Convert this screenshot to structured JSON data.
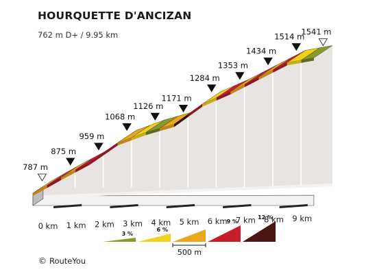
{
  "header": {
    "title": "HOURQUETTE D'ANCIZAN",
    "subtitle": "762 m D+ / 9.95 km"
  },
  "footer": {
    "copyright_symbol": "©",
    "brand": "RouteYou"
  },
  "chart_data": {
    "type": "area",
    "title": "HOURQUETTE D'ANCIZAN",
    "subtitle": "762 m D+ / 9.95 km",
    "distance_km": 9.95,
    "climb_m": 762,
    "x_tick_labels": [
      "0 km",
      "1 km",
      "2 km",
      "3 km",
      "4 km",
      "5 km",
      "6 km",
      "7 km",
      "8 km",
      "9 km"
    ],
    "x_ticks_km": [
      0,
      1,
      2,
      3,
      4,
      5,
      6,
      7,
      8,
      9
    ],
    "markers": [
      {
        "km": 0,
        "elevation": 787,
        "label": "787 m",
        "kind": "start"
      },
      {
        "km": 1,
        "elevation": 875,
        "label": "875 m",
        "kind": "km"
      },
      {
        "km": 2,
        "elevation": 959,
        "label": "959 m",
        "kind": "km"
      },
      {
        "km": 3,
        "elevation": 1068,
        "label": "1068 m",
        "kind": "km"
      },
      {
        "km": 4,
        "elevation": 1126,
        "label": "1126 m",
        "kind": "km"
      },
      {
        "km": 5,
        "elevation": 1171,
        "label": "1171 m",
        "kind": "km"
      },
      {
        "km": 6,
        "elevation": 1284,
        "label": "1284 m",
        "kind": "km"
      },
      {
        "km": 7,
        "elevation": 1353,
        "label": "1353 m",
        "kind": "km"
      },
      {
        "km": 8,
        "elevation": 1434,
        "label": "1434 m",
        "kind": "km"
      },
      {
        "km": 9,
        "elevation": 1514,
        "label": "1514 m",
        "kind": "km"
      },
      {
        "km": 9.95,
        "elevation": 1541,
        "label": "1541 m",
        "kind": "end"
      }
    ],
    "segments": [
      {
        "from_km": 0,
        "to_km": 0.5,
        "grade_class": 2
      },
      {
        "from_km": 0.5,
        "to_km": 1,
        "grade_class": 3
      },
      {
        "from_km": 1,
        "to_km": 1.5,
        "grade_class": 2
      },
      {
        "from_km": 1.5,
        "to_km": 2,
        "grade_class": 3
      },
      {
        "from_km": 2,
        "to_km": 2.5,
        "grade_class": 3
      },
      {
        "from_km": 2.5,
        "to_km": 3,
        "grade_class": 3
      },
      {
        "from_km": 3,
        "to_km": 3.5,
        "grade_class": 2
      },
      {
        "from_km": 3.5,
        "to_km": 4,
        "grade_class": 1
      },
      {
        "from_km": 4,
        "to_km": 4.5,
        "grade_class": 0
      },
      {
        "from_km": 4.5,
        "to_km": 5,
        "grade_class": 2
      },
      {
        "from_km": 5,
        "to_km": 5.5,
        "grade_class": 4
      },
      {
        "from_km": 5.5,
        "to_km": 6,
        "grade_class": 3
      },
      {
        "from_km": 6,
        "to_km": 6.5,
        "grade_class": 1
      },
      {
        "from_km": 6.5,
        "to_km": 7,
        "grade_class": 3
      },
      {
        "from_km": 7,
        "to_km": 7.5,
        "grade_class": 2
      },
      {
        "from_km": 7.5,
        "to_km": 8,
        "grade_class": 3
      },
      {
        "from_km": 8,
        "to_km": 8.5,
        "grade_class": 2
      },
      {
        "from_km": 8.5,
        "to_km": 9,
        "grade_class": 3
      },
      {
        "from_km": 9,
        "to_km": 9.5,
        "grade_class": 1
      },
      {
        "from_km": 9.5,
        "to_km": 9.95,
        "grade_class": 0
      }
    ],
    "legend": {
      "items": [
        {
          "label": "3 %",
          "color": "#8a9a2a"
        },
        {
          "label": "6 %",
          "color": "#f2d21b"
        },
        {
          "label": "",
          "color": "#eba61a"
        },
        {
          "label": "9 %",
          "color": "#c81e2a"
        },
        {
          "label": "12 %",
          "color": "#4a1512"
        }
      ],
      "scale_label": "500 m"
    },
    "colors": {
      "grade_top": [
        "#8a9a2a",
        "#f2d21b",
        "#eba61a",
        "#c81e2a",
        "#4a1512"
      ],
      "grade_side": [
        "#5f6b1d",
        "#c9ad12",
        "#c48612",
        "#951520",
        "#2f0d0b"
      ],
      "wall": "#e8e4e2",
      "wall_divider": "#ffffff",
      "base_front": "#f4f2f1",
      "base_side": "#bdbdbd",
      "base_strip": "#222222",
      "outline": "#444444"
    }
  }
}
